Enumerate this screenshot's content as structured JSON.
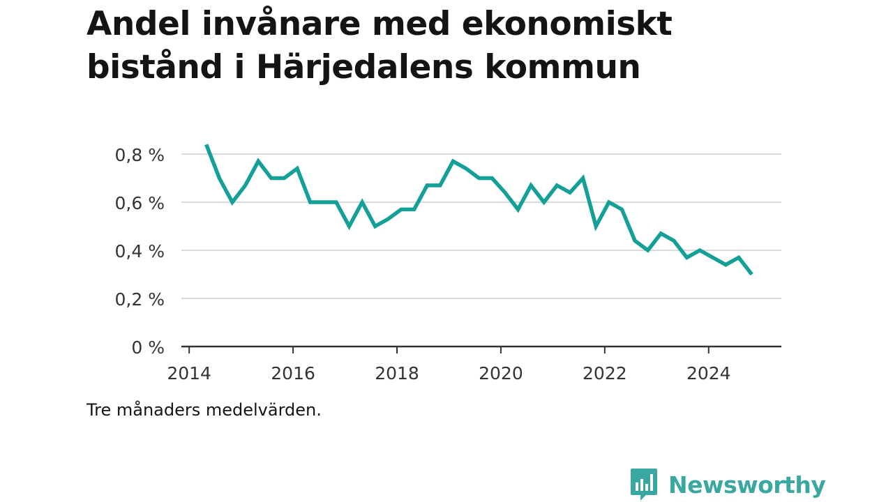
{
  "title": "Andel invånare med ekonomiskt bistånd i Härjedalens kommun",
  "note": "Tre månaders medelvärden.",
  "brand": {
    "name": "Newsworthy",
    "logo_icon": "bar-chart-speech-bubble-icon",
    "color": "#3aa8a0"
  },
  "colors": {
    "line": "#14a097",
    "grid": "#d9d9d9",
    "axis": "#333333",
    "text": "#333333"
  },
  "chart_data": {
    "type": "line",
    "title": "Andel invånare med ekonomiskt bistånd i Härjedalens kommun",
    "xlabel": "",
    "ylabel": "",
    "xlim": [
      2013.85,
      2025.4
    ],
    "ylim": [
      0,
      0.8
    ],
    "grid": true,
    "x_ticks": [
      2014,
      2016,
      2018,
      2020,
      2022,
      2024
    ],
    "y_ticks": [
      {
        "value": 0,
        "label": "0 %"
      },
      {
        "value": 0.2,
        "label": "0,2 %"
      },
      {
        "value": 0.4,
        "label": "0,4 %"
      },
      {
        "value": 0.6,
        "label": "0,6 %"
      },
      {
        "value": 0.8,
        "label": "0,8 %"
      }
    ],
    "series": [
      {
        "x": [
          2014.33,
          2014.58,
          2014.83,
          2015.08,
          2015.33,
          2015.58,
          2015.83,
          2016.08,
          2016.33,
          2016.58,
          2016.83,
          2017.08,
          2017.33,
          2017.58,
          2017.83,
          2018.08,
          2018.33,
          2018.58,
          2018.83,
          2019.08,
          2019.33,
          2019.58,
          2019.83,
          2020.08,
          2020.33,
          2020.58,
          2020.83,
          2021.08,
          2021.33,
          2021.58,
          2021.83,
          2022.08,
          2022.33,
          2022.58,
          2022.83,
          2023.08,
          2023.33,
          2023.58,
          2023.83,
          2024.08,
          2024.33,
          2024.58,
          2024.83
        ],
        "values": [
          0.84,
          0.7,
          0.6,
          0.67,
          0.77,
          0.7,
          0.7,
          0.74,
          0.6,
          0.6,
          0.6,
          0.5,
          0.6,
          0.5,
          0.53,
          0.57,
          0.57,
          0.67,
          0.67,
          0.77,
          0.74,
          0.7,
          0.7,
          0.64,
          0.57,
          0.67,
          0.6,
          0.67,
          0.64,
          0.7,
          0.5,
          0.6,
          0.57,
          0.44,
          0.4,
          0.47,
          0.44,
          0.37,
          0.4,
          0.37,
          0.34,
          0.37,
          0.3
        ]
      }
    ]
  }
}
